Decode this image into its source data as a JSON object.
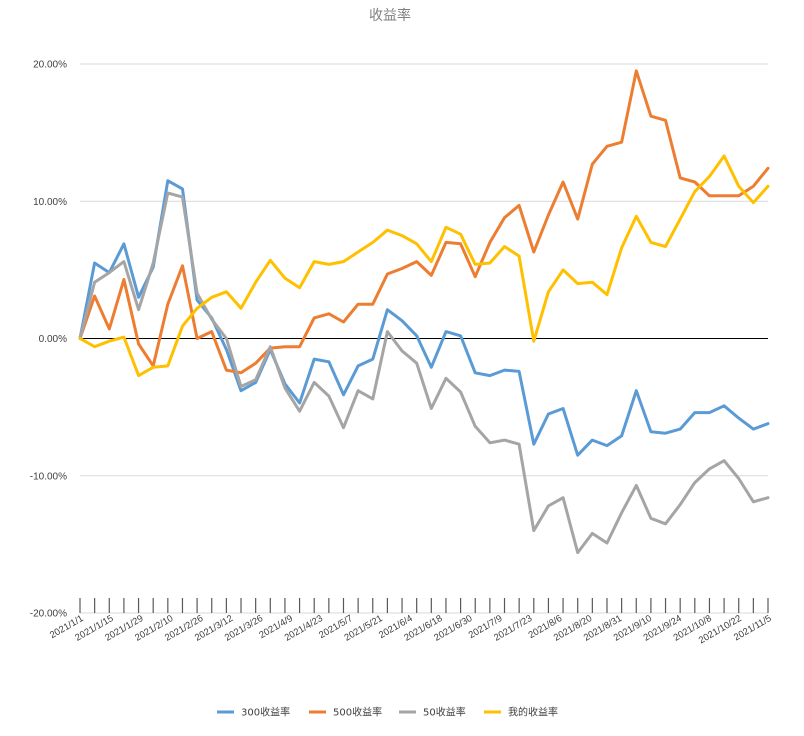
{
  "chart_data": {
    "type": "line",
    "title": "收益率",
    "xlabel": "",
    "ylabel": "",
    "ylim": [
      -0.2,
      0.2
    ],
    "y_ticks": [
      0.2,
      0.1,
      0.0,
      -0.1,
      -0.2
    ],
    "y_tick_labels": [
      "20.00%",
      "10.00%",
      "0.00%",
      "-10.00%",
      "-20.00%"
    ],
    "y_gridlines": true,
    "legend_position": "bottom",
    "x_tick_labels": [
      "2021/1/1",
      "2021/1/15",
      "2021/1/29",
      "2021/2/10",
      "2021/2/26",
      "2021/3/12",
      "2021/3/26",
      "2021/4/9",
      "2021/4/23",
      "2021/5/7",
      "2021/5/21",
      "2021/6/4",
      "2021/6/18",
      "2021/6/30",
      "2021/7/9",
      "2021/7/23",
      "2021/8/6",
      "2021/8/20",
      "2021/8/31",
      "2021/9/10",
      "2021/9/24",
      "2021/10/8",
      "2021/10/22",
      "2021/11/5"
    ],
    "series": [
      {
        "name": "300收益率",
        "color": "#5b9bd5",
        "values": [
          0.0,
          0.055,
          0.048,
          0.069,
          0.03,
          0.052,
          0.115,
          0.109,
          0.028,
          0.015,
          -0.008,
          -0.038,
          -0.032,
          -0.008,
          -0.033,
          -0.047,
          -0.015,
          -0.017,
          -0.041,
          -0.02,
          -0.015,
          0.021,
          0.013,
          0.002,
          -0.021,
          0.005,
          0.002,
          -0.025,
          -0.027,
          -0.023,
          -0.024,
          -0.077,
          -0.055,
          -0.051,
          -0.085,
          -0.074,
          -0.078,
          -0.071,
          -0.038,
          -0.068,
          -0.069,
          -0.066,
          -0.054,
          -0.054,
          -0.049,
          -0.058,
          -0.066,
          -0.062
        ]
      },
      {
        "name": "500收益率",
        "color": "#ed7d31",
        "values": [
          0.0,
          0.031,
          0.007,
          0.043,
          -0.004,
          -0.02,
          0.025,
          0.053,
          0.0,
          0.005,
          -0.023,
          -0.025,
          -0.018,
          -0.007,
          -0.006,
          -0.006,
          0.015,
          0.018,
          0.012,
          0.025,
          0.025,
          0.047,
          0.051,
          0.056,
          0.046,
          0.07,
          0.069,
          0.045,
          0.07,
          0.088,
          0.097,
          0.063,
          0.09,
          0.114,
          0.087,
          0.127,
          0.14,
          0.143,
          0.195,
          0.162,
          0.159,
          0.117,
          0.114,
          0.104,
          0.104,
          0.104,
          0.111,
          0.124
        ]
      },
      {
        "name": "50收益率",
        "color": "#a5a5a5",
        "values": [
          0.0,
          0.041,
          0.048,
          0.056,
          0.021,
          0.055,
          0.106,
          0.103,
          0.033,
          0.014,
          0.0,
          -0.035,
          -0.03,
          -0.006,
          -0.036,
          -0.053,
          -0.032,
          -0.042,
          -0.065,
          -0.038,
          -0.044,
          0.005,
          -0.009,
          -0.018,
          -0.051,
          -0.029,
          -0.039,
          -0.064,
          -0.076,
          -0.074,
          -0.077,
          -0.14,
          -0.122,
          -0.116,
          -0.156,
          -0.142,
          -0.149,
          -0.127,
          -0.107,
          -0.131,
          -0.135,
          -0.121,
          -0.105,
          -0.095,
          -0.089,
          -0.102,
          -0.119,
          -0.116
        ]
      },
      {
        "name": "我的收益率",
        "color": "#ffc000",
        "values": [
          0.0,
          -0.006,
          -0.002,
          0.001,
          -0.027,
          -0.021,
          -0.02,
          0.009,
          0.022,
          0.03,
          0.034,
          0.022,
          0.041,
          0.057,
          0.044,
          0.037,
          0.056,
          0.054,
          0.056,
          0.063,
          0.07,
          0.079,
          0.075,
          0.069,
          0.056,
          0.081,
          0.076,
          0.054,
          0.055,
          0.067,
          0.06,
          -0.002,
          0.034,
          0.05,
          0.04,
          0.041,
          0.032,
          0.066,
          0.089,
          0.07,
          0.067,
          0.087,
          0.107,
          0.118,
          0.133,
          0.111,
          0.099,
          0.111
        ]
      }
    ]
  }
}
